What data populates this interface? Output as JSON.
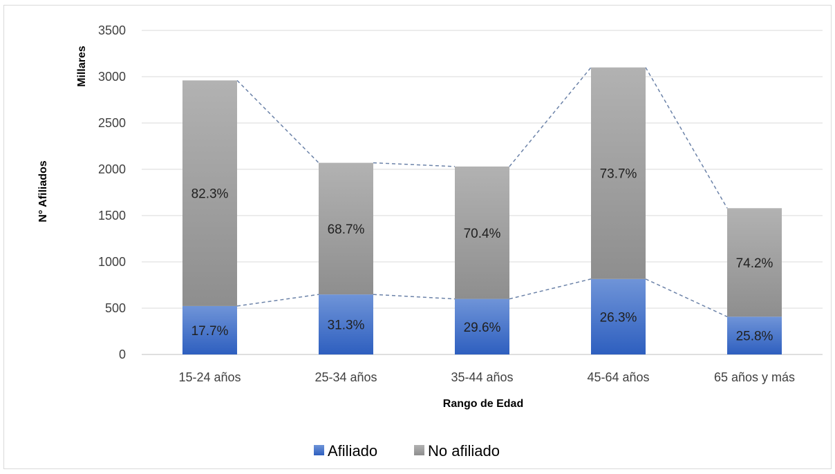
{
  "chart_data": {
    "type": "bar",
    "stacked": true,
    "categories": [
      "15-24 años",
      "25-34 años",
      "35-44 años",
      "45-64 años",
      "65 años y más"
    ],
    "series": [
      {
        "name": "Afiliado",
        "values": [
          523,
          648,
          600,
          815,
          408
        ],
        "labels": [
          "17.7%",
          "31.3%",
          "29.6%",
          "26.3%",
          "25.8%"
        ],
        "color": "#4472c4"
      },
      {
        "name": "No afiliado",
        "values": [
          2437,
          1422,
          1430,
          2285,
          1172
        ],
        "labels": [
          "82.3%",
          "68.7%",
          "70.4%",
          "73.7%",
          "74.2%"
        ],
        "color": "#a5a5a5"
      }
    ],
    "series_lines": true,
    "xlabel": "Rango de Edad",
    "ylabel": "N° Afiliados",
    "y_units_label": "Millares",
    "ylim": [
      0,
      3500
    ],
    "yticks": [
      0,
      500,
      1000,
      1500,
      2000,
      2500,
      3000,
      3500
    ],
    "grid": true,
    "legend": "bottom"
  }
}
